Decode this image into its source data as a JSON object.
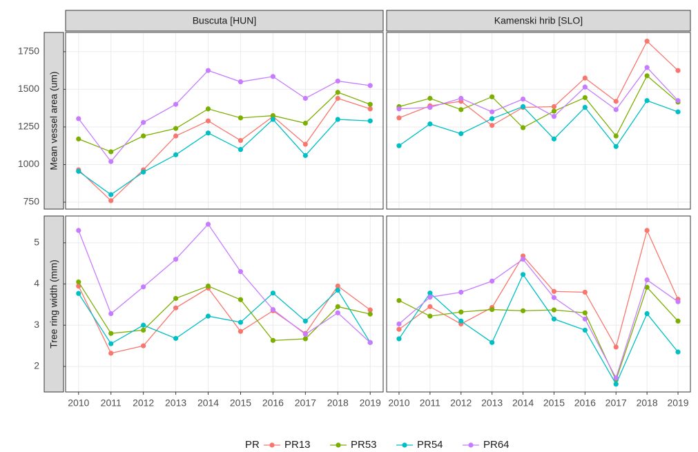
{
  "chart_data": {
    "type": "line",
    "categories": [
      "2010",
      "2011",
      "2012",
      "2013",
      "2014",
      "2015",
      "2016",
      "2017",
      "2018",
      "2019"
    ],
    "facet_labels": [
      "Buscuta [HUN]",
      "Kamenski hrib [SLO]"
    ],
    "legend_title": "PR",
    "legend_position": "bottom",
    "grid": true,
    "series": [
      {
        "name": "PR13",
        "color": "#F8766D"
      },
      {
        "name": "PR53",
        "color": "#7CAE00"
      },
      {
        "name": "PR54",
        "color": "#00BFC4"
      },
      {
        "name": "PR64",
        "color": "#C77CFF"
      }
    ],
    "rows": [
      {
        "ylabel": "Mean vessel area (um)",
        "ylim": [
          704,
          1878
        ],
        "yticks": [
          750,
          1000,
          1250,
          1500,
          1750
        ],
        "panels": [
          [
            [
              965,
              760,
              965,
              1190,
              1290,
              1160,
              1320,
              1135,
              1440,
              1370
            ],
            [
              1170,
              1085,
              1190,
              1240,
              1370,
              1310,
              1325,
              1275,
              1480,
              1400
            ],
            [
              955,
              800,
              950,
              1065,
              1210,
              1100,
              1300,
              1060,
              1300,
              1290
            ],
            [
              1305,
              1020,
              1280,
              1400,
              1625,
              1550,
              1585,
              1440,
              1555,
              1525
            ]
          ],
          [
            [
              1310,
              1390,
              1420,
              1260,
              1380,
              1385,
              1575,
              1420,
              1820,
              1625
            ],
            [
              1385,
              1440,
              1365,
              1450,
              1245,
              1355,
              1445,
              1190,
              1590,
              1415
            ],
            [
              1125,
              1270,
              1205,
              1305,
              1385,
              1170,
              1380,
              1120,
              1425,
              1350
            ],
            [
              1370,
              1380,
              1440,
              1350,
              1435,
              1320,
              1515,
              1365,
              1645,
              1425
            ]
          ]
        ]
      },
      {
        "ylabel": "Tree ring width (mm)",
        "ylim": [
          1.38,
          5.65
        ],
        "yticks": [
          2,
          3,
          4,
          5
        ],
        "panels": [
          [
            [
              3.95,
              2.32,
              2.5,
              3.42,
              3.9,
              2.85,
              3.35,
              2.8,
              3.95,
              3.37
            ],
            [
              4.05,
              2.8,
              2.88,
              3.65,
              3.95,
              3.62,
              2.63,
              2.67,
              3.45,
              3.27
            ],
            [
              3.77,
              2.55,
              3.0,
              2.68,
              3.22,
              3.07,
              3.78,
              3.1,
              3.85,
              2.58
            ],
            [
              5.3,
              3.28,
              3.93,
              4.6,
              5.45,
              4.3,
              3.38,
              2.78,
              3.3,
              2.58
            ]
          ],
          [
            [
              2.9,
              3.45,
              3.03,
              3.43,
              4.68,
              3.82,
              3.8,
              2.47,
              5.3,
              3.63
            ],
            [
              3.6,
              3.22,
              3.32,
              3.38,
              3.35,
              3.37,
              3.3,
              1.67,
              3.92,
              3.1
            ],
            [
              2.67,
              3.78,
              3.1,
              2.58,
              4.23,
              3.15,
              2.88,
              1.57,
              3.28,
              2.35
            ],
            [
              3.03,
              3.68,
              3.8,
              4.07,
              4.6,
              3.67,
              3.15,
              1.72,
              4.1,
              3.57
            ]
          ]
        ]
      }
    ]
  }
}
